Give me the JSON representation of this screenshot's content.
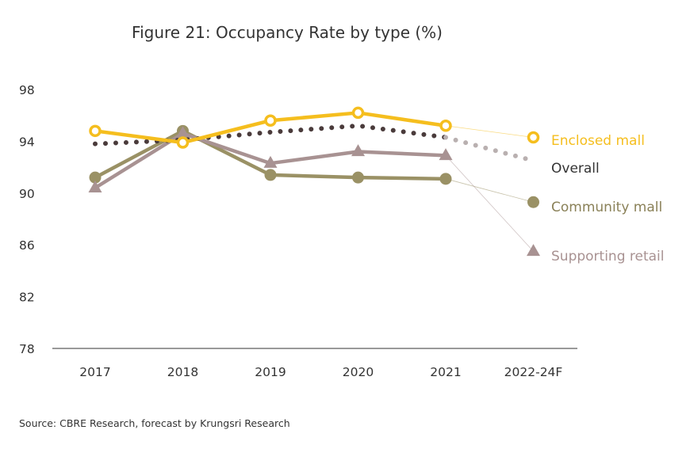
{
  "chart_data": {
    "type": "line",
    "title": "Figure 21: Occupancy Rate by type (%)",
    "xlabel": "",
    "ylabel": "",
    "categories": [
      "2017",
      "2018",
      "2019",
      "2020",
      "2021",
      "2022-24F"
    ],
    "ylim": [
      78,
      98
    ],
    "yticks": [
      78,
      82,
      86,
      90,
      94,
      98
    ],
    "grid": false,
    "legend": "right",
    "series": [
      {
        "name": "Enclosed mall",
        "color": "#F5BE1E",
        "marker": "hollow-circle",
        "style": "solid",
        "values": [
          94.8,
          93.9,
          95.6,
          96.2,
          95.2,
          94.3
        ]
      },
      {
        "name": "Overall",
        "color": "#4A3B3B",
        "forecast_color": "#B9B0B0",
        "marker": "none",
        "style": "dotted",
        "values": [
          93.8,
          94.1,
          94.7,
          95.2,
          94.3,
          92.5
        ]
      },
      {
        "name": "Community mall",
        "color": "#9A9165",
        "marker": "circle",
        "style": "solid",
        "values": [
          91.2,
          94.8,
          91.4,
          91.2,
          91.1,
          89.3
        ]
      },
      {
        "name": "Supporting retail",
        "color": "#A89292",
        "marker": "triangle",
        "style": "solid",
        "values": [
          90.4,
          94.6,
          92.3,
          93.2,
          92.9,
          85.5
        ]
      }
    ],
    "source": "Source: CBRE Research, forecast by Krungsri Research"
  }
}
